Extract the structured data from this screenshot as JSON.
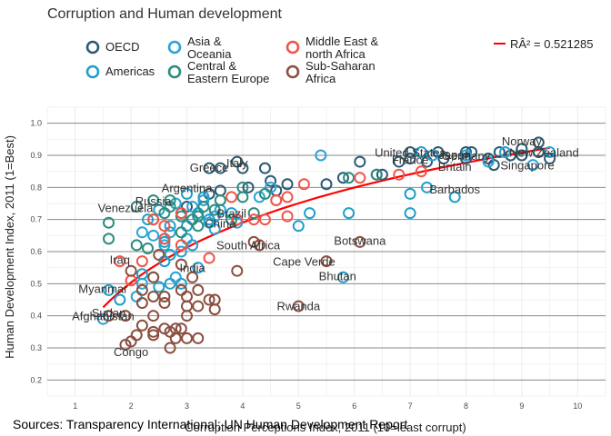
{
  "chart_data": {
    "type": "scatter",
    "title": "Corruption and Human development",
    "xlabel": "Corruption Perceptions Index, 2011 (10=least corrupt)",
    "ylabel": "Human Development Index, 2011 (1=Best)",
    "caption": "Sources: Transparency International; UN Human Development Report",
    "r2_label": "RÂ² = 0.521285",
    "xlim": [
      0.5,
      10.5
    ],
    "ylim": [
      0.15,
      1.05
    ],
    "x_ticks": [
      "1",
      "2",
      "3",
      "4",
      "5",
      "6",
      "7",
      "8",
      "9",
      "10"
    ],
    "y_ticks": [
      "0.2",
      "0.3",
      "0.4",
      "0.5",
      "0.6",
      "0.7",
      "0.8",
      "0.9",
      "1.0"
    ],
    "grid": true,
    "legend_position": "top",
    "trend": {
      "type": "log-fit",
      "color": "#ff0000",
      "x_range": [
        1.5,
        9.5
      ]
    },
    "series": [
      {
        "name": "OECD",
        "color": "#2b5a73",
        "points": [
          [
            7.0,
            0.91
          ],
          [
            7.5,
            0.91
          ],
          [
            8.0,
            0.91
          ],
          [
            8.1,
            0.91
          ],
          [
            8.6,
            0.91
          ],
          [
            9.0,
            0.92
          ],
          [
            9.3,
            0.94
          ],
          [
            8.4,
            0.89
          ],
          [
            8.0,
            0.89
          ],
          [
            7.6,
            0.89
          ],
          [
            7.0,
            0.89
          ],
          [
            6.8,
            0.88
          ],
          [
            7.3,
            0.88
          ],
          [
            8.5,
            0.87
          ],
          [
            6.1,
            0.88
          ],
          [
            6.4,
            0.84
          ],
          [
            6.5,
            0.84
          ],
          [
            5.8,
            0.83
          ],
          [
            5.5,
            0.81
          ],
          [
            4.8,
            0.81
          ],
          [
            4.5,
            0.82
          ],
          [
            4.1,
            0.8
          ],
          [
            4.0,
            0.86
          ],
          [
            3.6,
            0.86
          ],
          [
            3.9,
            0.88
          ],
          [
            4.4,
            0.86
          ],
          [
            3.4,
            0.86
          ],
          [
            3.4,
            0.78
          ],
          [
            3.0,
            0.74
          ],
          [
            3.6,
            0.79
          ],
          [
            9.0,
            0.9
          ],
          [
            9.3,
            0.91
          ],
          [
            8.8,
            0.9
          ],
          [
            9.5,
            0.89
          ],
          [
            4.6,
            0.79
          ]
        ]
      },
      {
        "name": "Americas",
        "color": "#1e9fc9",
        "points": [
          [
            7.2,
            0.91
          ],
          [
            8.7,
            0.91
          ],
          [
            7.0,
            0.78
          ],
          [
            7.3,
            0.8
          ],
          [
            7.8,
            0.77
          ],
          [
            7.0,
            0.72
          ],
          [
            5.9,
            0.72
          ],
          [
            5.2,
            0.72
          ],
          [
            5.8,
            0.52
          ],
          [
            3.0,
            0.78
          ],
          [
            3.3,
            0.77
          ],
          [
            2.9,
            0.72
          ],
          [
            3.8,
            0.72
          ],
          [
            3.4,
            0.7
          ],
          [
            2.5,
            0.73
          ],
          [
            2.3,
            0.7
          ],
          [
            2.7,
            0.68
          ],
          [
            3.0,
            0.68
          ],
          [
            3.1,
            0.62
          ],
          [
            2.6,
            0.63
          ],
          [
            2.7,
            0.59
          ],
          [
            2.6,
            0.57
          ],
          [
            2.9,
            0.5
          ],
          [
            2.7,
            0.5
          ],
          [
            2.2,
            0.53
          ],
          [
            1.6,
            0.48
          ],
          [
            1.8,
            0.45
          ],
          [
            2.5,
            0.49
          ],
          [
            5.0,
            0.68
          ],
          [
            3.2,
            0.72
          ]
        ]
      },
      {
        "name": "Asia &\nOceania",
        "color": "#2aa3d6",
        "points": [
          [
            9.5,
            0.91
          ],
          [
            9.2,
            0.87
          ],
          [
            8.7,
            0.91
          ],
          [
            8.4,
            0.88
          ],
          [
            7.4,
            0.9
          ],
          [
            8.0,
            0.9
          ],
          [
            5.4,
            0.9
          ],
          [
            4.5,
            0.8
          ],
          [
            4.3,
            0.77
          ],
          [
            3.5,
            0.71
          ],
          [
            3.4,
            0.69
          ],
          [
            3.0,
            0.64
          ],
          [
            3.1,
            0.62
          ],
          [
            2.9,
            0.6
          ],
          [
            2.6,
            0.62
          ],
          [
            2.4,
            0.65
          ],
          [
            2.2,
            0.66
          ],
          [
            2.7,
            0.66
          ],
          [
            3.2,
            0.55
          ],
          [
            2.8,
            0.52
          ],
          [
            2.4,
            0.52
          ],
          [
            2.2,
            0.5
          ],
          [
            2.1,
            0.46
          ],
          [
            1.5,
            0.39
          ],
          [
            3.3,
            0.76
          ],
          [
            3.1,
            0.74
          ],
          [
            3.6,
            0.73
          ],
          [
            2.8,
            0.75
          ],
          [
            3.9,
            0.69
          ],
          [
            3.5,
            0.67
          ]
        ]
      },
      {
        "name": "Central &\nEastern Europe",
        "color": "#2b8c7e",
        "points": [
          [
            6.4,
            0.84
          ],
          [
            5.9,
            0.83
          ],
          [
            4.0,
            0.8
          ],
          [
            4.0,
            0.77
          ],
          [
            4.4,
            0.78
          ],
          [
            3.6,
            0.76
          ],
          [
            3.3,
            0.74
          ],
          [
            3.2,
            0.71
          ],
          [
            3.1,
            0.7
          ],
          [
            2.9,
            0.71
          ],
          [
            2.7,
            0.74
          ],
          [
            2.7,
            0.76
          ],
          [
            2.4,
            0.76
          ],
          [
            2.6,
            0.72
          ],
          [
            2.4,
            0.7
          ],
          [
            2.1,
            0.74
          ],
          [
            1.6,
            0.69
          ],
          [
            1.6,
            0.64
          ],
          [
            2.1,
            0.62
          ],
          [
            2.3,
            0.61
          ],
          [
            2.6,
            0.64
          ],
          [
            3.5,
            0.73
          ],
          [
            4.2,
            0.72
          ],
          [
            3.8,
            0.7
          ],
          [
            2.9,
            0.66
          ],
          [
            3.2,
            0.68
          ]
        ]
      },
      {
        "name": "Middle East &\nnorth Africa",
        "color": "#f0544a",
        "points": [
          [
            7.2,
            0.85
          ],
          [
            6.8,
            0.84
          ],
          [
            6.1,
            0.83
          ],
          [
            5.1,
            0.81
          ],
          [
            4.8,
            0.77
          ],
          [
            4.8,
            0.71
          ],
          [
            4.6,
            0.76
          ],
          [
            4.4,
            0.7
          ],
          [
            4.2,
            0.7
          ],
          [
            3.8,
            0.77
          ],
          [
            3.4,
            0.58
          ],
          [
            2.9,
            0.62
          ],
          [
            2.6,
            0.64
          ],
          [
            2.4,
            0.7
          ],
          [
            2.2,
            0.57
          ],
          [
            1.8,
            0.57
          ],
          [
            2.0,
            0.51
          ],
          [
            2.9,
            0.72
          ],
          [
            3.9,
            0.7
          ],
          [
            2.6,
            0.68
          ]
        ]
      },
      {
        "name": "Sub-Saharan\nAfrica",
        "color": "#8c4f40",
        "points": [
          [
            6.1,
            0.63
          ],
          [
            5.5,
            0.57
          ],
          [
            5.0,
            0.43
          ],
          [
            4.2,
            0.63
          ],
          [
            4.3,
            0.62
          ],
          [
            3.9,
            0.54
          ],
          [
            3.5,
            0.45
          ],
          [
            3.5,
            0.42
          ],
          [
            3.4,
            0.45
          ],
          [
            3.0,
            0.46
          ],
          [
            3.0,
            0.43
          ],
          [
            3.0,
            0.4
          ],
          [
            2.9,
            0.48
          ],
          [
            3.2,
            0.48
          ],
          [
            3.2,
            0.43
          ],
          [
            2.9,
            0.36
          ],
          [
            2.8,
            0.36
          ],
          [
            3.0,
            0.33
          ],
          [
            3.2,
            0.33
          ],
          [
            2.6,
            0.46
          ],
          [
            2.6,
            0.44
          ],
          [
            2.6,
            0.36
          ],
          [
            2.4,
            0.4
          ],
          [
            2.4,
            0.46
          ],
          [
            2.4,
            0.52
          ],
          [
            2.2,
            0.48
          ],
          [
            2.2,
            0.44
          ],
          [
            2.2,
            0.37
          ],
          [
            2.1,
            0.34
          ],
          [
            2.0,
            0.32
          ],
          [
            1.9,
            0.31
          ],
          [
            2.4,
            0.34
          ],
          [
            2.7,
            0.35
          ],
          [
            2.7,
            0.3
          ],
          [
            2.8,
            0.33
          ],
          [
            2.4,
            0.35
          ],
          [
            1.6,
            0.4
          ],
          [
            2.0,
            0.54
          ],
          [
            1.9,
            0.4
          ],
          [
            3.1,
            0.52
          ],
          [
            2.5,
            0.59
          ],
          [
            2.9,
            0.56
          ]
        ]
      }
    ],
    "labels": [
      {
        "text": "Norway",
        "x": 9.0,
        "y": 0.943
      },
      {
        "text": "New Zealand",
        "x": 9.4,
        "y": 0.907
      },
      {
        "text": "Singapore",
        "x": 9.1,
        "y": 0.868
      },
      {
        "text": "Japan",
        "x": 7.8,
        "y": 0.9
      },
      {
        "text": "United States",
        "x": 7.0,
        "y": 0.907
      },
      {
        "text": "Germany",
        "x": 8.0,
        "y": 0.897
      },
      {
        "text": "France",
        "x": 7.0,
        "y": 0.884
      },
      {
        "text": "Britain",
        "x": 7.8,
        "y": 0.863
      },
      {
        "text": "Barbados",
        "x": 7.8,
        "y": 0.793
      },
      {
        "text": "Italy",
        "x": 3.9,
        "y": 0.874
      },
      {
        "text": "Greece",
        "x": 3.4,
        "y": 0.861
      },
      {
        "text": "Argentina",
        "x": 3.0,
        "y": 0.797
      },
      {
        "text": "Russia",
        "x": 2.4,
        "y": 0.755
      },
      {
        "text": "Venezuela",
        "x": 1.9,
        "y": 0.735
      },
      {
        "text": "Brazil",
        "x": 3.8,
        "y": 0.718
      },
      {
        "text": "China",
        "x": 3.6,
        "y": 0.687
      },
      {
        "text": "South Africa",
        "x": 4.1,
        "y": 0.619
      },
      {
        "text": "Botswana",
        "x": 6.1,
        "y": 0.633
      },
      {
        "text": "Iraq",
        "x": 1.8,
        "y": 0.573
      },
      {
        "text": "India",
        "x": 3.1,
        "y": 0.547
      },
      {
        "text": "Cape Verde",
        "x": 5.1,
        "y": 0.568
      },
      {
        "text": "Bhutan",
        "x": 5.7,
        "y": 0.522
      },
      {
        "text": "Myanmar",
        "x": 1.5,
        "y": 0.483
      },
      {
        "text": "Rwanda",
        "x": 5.0,
        "y": 0.429
      },
      {
        "text": "Sudan",
        "x": 1.6,
        "y": 0.408
      },
      {
        "text": "Afghanistan",
        "x": 1.5,
        "y": 0.398
      },
      {
        "text": "Congo",
        "x": 2.0,
        "y": 0.286
      }
    ]
  }
}
